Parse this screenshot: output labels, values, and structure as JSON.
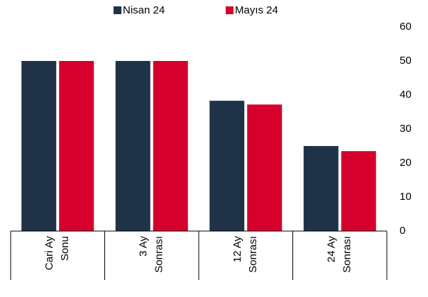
{
  "chart_data": {
    "type": "bar",
    "categories": [
      [
        "Cari Ay",
        "Sonu"
      ],
      [
        "3 Ay",
        "Sonrası"
      ],
      [
        "12 Ay",
        "Sonrası"
      ],
      [
        "24 Ay",
        "Sonrası"
      ]
    ],
    "series": [
      {
        "name": "Nisan 24",
        "color": "#1f3247",
        "values": [
          50,
          50,
          38.3,
          25.0
        ]
      },
      {
        "name": "Mayıs 24",
        "color": "#d5002b",
        "values": [
          50,
          50,
          37.2,
          23.5
        ]
      }
    ],
    "ylim": [
      0,
      60
    ],
    "yticks": [
      0,
      10,
      20,
      30,
      40,
      50,
      60
    ],
    "grid": false,
    "legend": "top"
  }
}
